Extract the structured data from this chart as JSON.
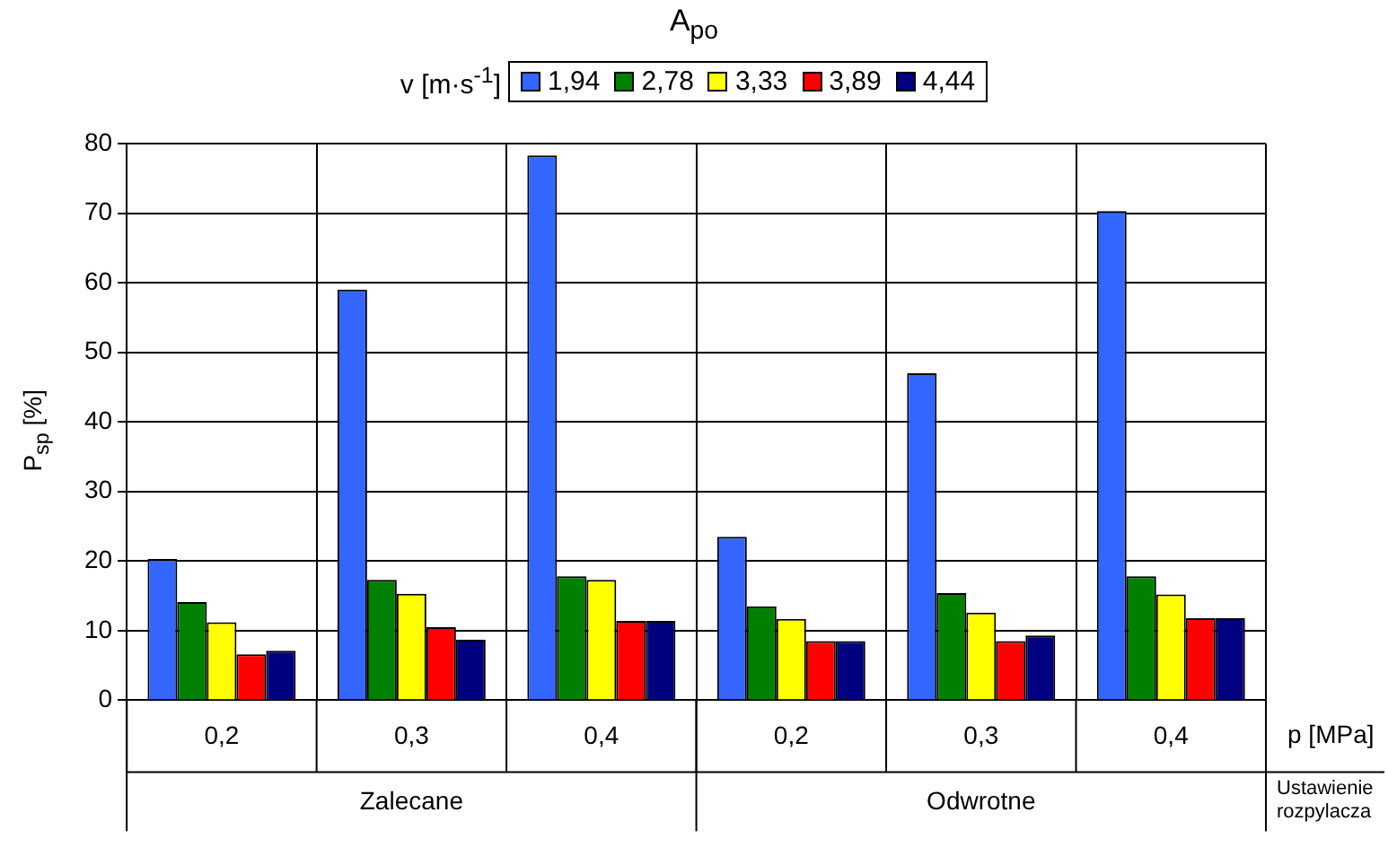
{
  "chart_data": {
    "type": "bar",
    "title": "A$_{po}$",
    "ylabel": "P$_{sp}$ [%]",
    "xlabel": "p [MPa]",
    "legend_title": "v [m·s$^{-1}$]",
    "categories": [
      "0,2",
      "0,3",
      "0,4",
      "0,2",
      "0,3",
      "0,4"
    ],
    "series": [
      {
        "name": "1,94",
        "color": "#3366ff",
        "values": [
          20.3,
          59.0,
          78.3,
          23.5,
          47.0,
          70.3
        ]
      },
      {
        "name": "2,78",
        "color": "#008000",
        "values": [
          14.1,
          17.3,
          17.8,
          13.5,
          15.4,
          17.8
        ]
      },
      {
        "name": "3,33",
        "color": "#ffff00",
        "values": [
          11.2,
          15.3,
          17.3,
          11.7,
          12.6,
          15.2
        ]
      },
      {
        "name": "3,89",
        "color": "#ff0000",
        "values": [
          6.6,
          10.5,
          11.4,
          8.5,
          8.5,
          11.8
        ]
      },
      {
        "name": "4,44",
        "color": "#000080",
        "values": [
          7.1,
          8.7,
          11.4,
          8.5,
          9.3,
          11.8
        ]
      }
    ],
    "annotations": [
      "Zalecane",
      "Odwrotne",
      "Ustawienie rozpylacza"
    ],
    "ylim": [
      0,
      80
    ],
    "yticks": [
      0,
      10,
      20,
      30,
      40,
      50,
      60,
      70,
      80
    ],
    "grid": true,
    "legend": "top"
  }
}
